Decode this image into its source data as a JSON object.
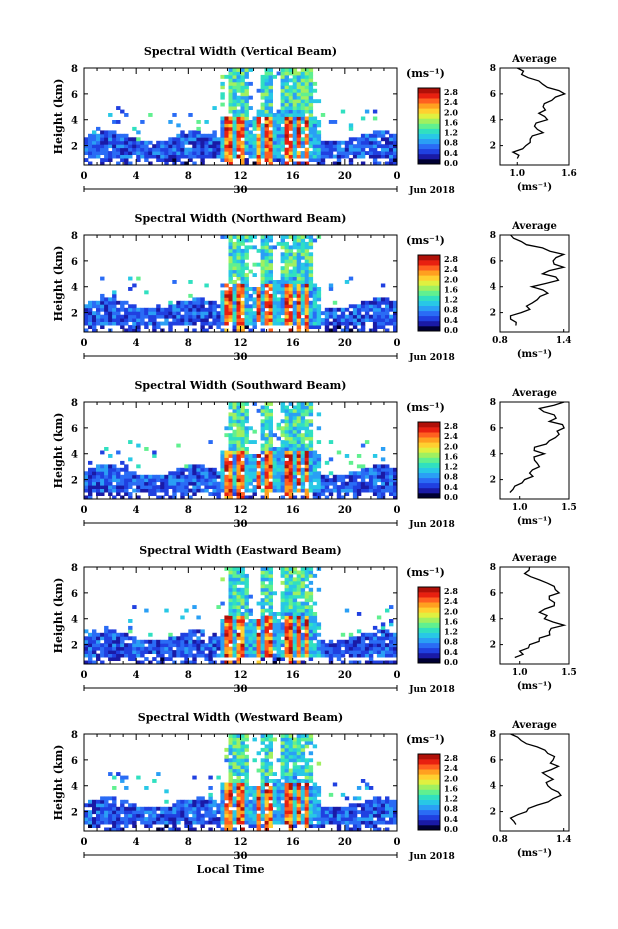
{
  "figure": {
    "xlabel": "Local Time",
    "date_label": "Jun 2018",
    "day_label": "30",
    "unit_label": "(ms⁻¹)",
    "height_label": "Height (km)",
    "average_title": "Average"
  },
  "colorbar": {
    "ticks": [
      "2.8",
      "2.4",
      "2.0",
      "1.6",
      "1.2",
      "0.8",
      "0.4",
      "0.0"
    ],
    "range": [
      0,
      3.0
    ],
    "colors": [
      "#000033",
      "#1a1aa6",
      "#2040e0",
      "#2a6cf5",
      "#2a9ff5",
      "#28c8e6",
      "#30e0c0",
      "#60f090",
      "#a0f060",
      "#e0f040",
      "#ffd030",
      "#ffa020",
      "#ff6020",
      "#e82010",
      "#b01008"
    ]
  },
  "chart_data": [
    {
      "type": "heatmap",
      "title": "Spectral Width (Vertical Beam)",
      "ylabel": "Height (km)",
      "xlabel": "",
      "x_ticks": [
        "0",
        "4",
        "8",
        "12",
        "16",
        "20",
        "0"
      ],
      "y_ticks": [
        "2",
        "4",
        "6",
        "8"
      ],
      "xlim": [
        0,
        24
      ],
      "ylim": [
        0.5,
        8
      ],
      "average": {
        "title": "Average",
        "xlabel": "(ms⁻¹)",
        "x_ticks": [
          "1.0",
          "1.6"
        ],
        "xlim": [
          0.8,
          1.6
        ],
        "y_ticks": [
          "2",
          "4",
          "6",
          "8"
        ],
        "ylim": [
          0.5,
          8
        ],
        "height": [
          1.0,
          1.5,
          2.0,
          2.5,
          3.0,
          3.5,
          4.0,
          4.5,
          5.0,
          5.5,
          6.0,
          6.5,
          7.0,
          7.5,
          8.0
        ],
        "values": [
          1.0,
          0.95,
          1.1,
          1.15,
          1.3,
          1.2,
          1.35,
          1.25,
          1.3,
          1.4,
          1.55,
          1.35,
          1.25,
          1.05,
          1.0
        ]
      }
    },
    {
      "type": "heatmap",
      "title": "Spectral Width (Northward Beam)",
      "ylabel": "Height (km)",
      "xlabel": "",
      "x_ticks": [
        "0",
        "4",
        "8",
        "12",
        "16",
        "20",
        "0"
      ],
      "y_ticks": [
        "2",
        "4",
        "6",
        "8"
      ],
      "xlim": [
        0,
        24
      ],
      "ylim": [
        0.5,
        8
      ],
      "average": {
        "title": "Average",
        "xlabel": "(ms⁻¹)",
        "x_ticks": [
          "0.8",
          "1.4"
        ],
        "xlim": [
          0.8,
          1.45
        ],
        "y_ticks": [
          "2",
          "4",
          "6",
          "8"
        ],
        "ylim": [
          0.5,
          8
        ],
        "height": [
          1.0,
          1.5,
          2.0,
          2.5,
          3.0,
          3.5,
          4.0,
          4.5,
          5.0,
          5.5,
          6.0,
          6.5,
          7.0,
          7.5,
          8.0
        ],
        "values": [
          0.95,
          0.9,
          1.0,
          1.05,
          1.15,
          1.25,
          1.1,
          1.35,
          1.2,
          1.4,
          1.3,
          1.4,
          1.2,
          1.0,
          0.9
        ]
      }
    },
    {
      "type": "heatmap",
      "title": "Spectral Width (Southward Beam)",
      "ylabel": "Height (km)",
      "xlabel": "",
      "x_ticks": [
        "0",
        "4",
        "8",
        "12",
        "16",
        "20",
        "0"
      ],
      "y_ticks": [
        "2",
        "4",
        "6",
        "8"
      ],
      "xlim": [
        0,
        24
      ],
      "ylim": [
        0.5,
        8
      ],
      "average": {
        "title": "Average",
        "xlabel": "(ms⁻¹)",
        "x_ticks": [
          "1.0",
          "1.5"
        ],
        "xlim": [
          0.8,
          1.5
        ],
        "y_ticks": [
          "2",
          "4",
          "6",
          "8"
        ],
        "ylim": [
          0.5,
          8
        ],
        "height": [
          1.0,
          1.5,
          2.0,
          2.5,
          3.0,
          3.5,
          4.0,
          4.5,
          5.0,
          5.5,
          6.0,
          6.5,
          7.0,
          7.5,
          8.0
        ],
        "values": [
          0.9,
          0.95,
          1.05,
          1.1,
          1.2,
          1.15,
          1.25,
          1.15,
          1.3,
          1.4,
          1.45,
          1.3,
          1.35,
          1.2,
          1.45
        ]
      }
    },
    {
      "type": "heatmap",
      "title": "Spectral Width (Eastward Beam)",
      "ylabel": "Height (km)",
      "xlabel": "",
      "x_ticks": [
        "0",
        "4",
        "8",
        "12",
        "16",
        "20",
        "0"
      ],
      "y_ticks": [
        "2",
        "4",
        "6",
        "8"
      ],
      "xlim": [
        0,
        24
      ],
      "ylim": [
        0.5,
        8
      ],
      "average": {
        "title": "Average",
        "xlabel": "(ms⁻¹)",
        "x_ticks": [
          "1.0",
          "1.5"
        ],
        "xlim": [
          0.8,
          1.5
        ],
        "y_ticks": [
          "2",
          "4",
          "6",
          "8"
        ],
        "ylim": [
          0.5,
          8
        ],
        "height": [
          1.0,
          1.5,
          2.0,
          2.5,
          3.0,
          3.5,
          4.0,
          4.5,
          5.0,
          5.5,
          6.0,
          6.5,
          7.0,
          7.5,
          8.0
        ],
        "values": [
          0.95,
          1.0,
          1.1,
          1.2,
          1.3,
          1.45,
          1.25,
          1.2,
          1.35,
          1.3,
          1.4,
          1.35,
          1.2,
          1.05,
          1.1
        ]
      }
    },
    {
      "type": "heatmap",
      "title": "Spectral Width (Westward Beam)",
      "ylabel": "Height (km)",
      "xlabel": "Local Time",
      "x_ticks": [
        "0",
        "4",
        "8",
        "12",
        "16",
        "20",
        "0"
      ],
      "y_ticks": [
        "2",
        "4",
        "6",
        "8"
      ],
      "xlim": [
        0,
        24
      ],
      "ylim": [
        0.5,
        8
      ],
      "average": {
        "title": "Average",
        "xlabel": "(ms⁻¹)",
        "x_ticks": [
          "0.8",
          "1.4"
        ],
        "xlim": [
          0.8,
          1.45
        ],
        "y_ticks": [
          "2",
          "4",
          "6",
          "8"
        ],
        "ylim": [
          0.5,
          8
        ],
        "height": [
          1.0,
          1.5,
          2.0,
          2.5,
          3.0,
          3.5,
          4.0,
          4.5,
          5.0,
          5.5,
          6.0,
          6.5,
          7.0,
          7.5,
          8.0
        ],
        "values": [
          0.95,
          0.9,
          1.05,
          1.15,
          1.3,
          1.35,
          1.25,
          1.3,
          1.2,
          1.35,
          1.3,
          1.25,
          1.15,
          1.0,
          0.9
        ]
      }
    }
  ]
}
